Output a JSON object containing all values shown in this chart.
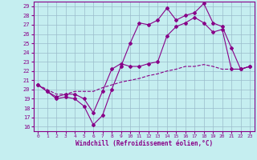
{
  "xlabel": "Windchill (Refroidissement éolien,°C)",
  "xlim": [
    -0.5,
    23.5
  ],
  "ylim": [
    15.5,
    29.5
  ],
  "xticks": [
    0,
    1,
    2,
    3,
    4,
    5,
    6,
    7,
    8,
    9,
    10,
    11,
    12,
    13,
    14,
    15,
    16,
    17,
    18,
    19,
    20,
    21,
    22,
    23
  ],
  "yticks": [
    16,
    17,
    18,
    19,
    20,
    21,
    22,
    23,
    24,
    25,
    26,
    27,
    28,
    29
  ],
  "bg_color": "#c5eef0",
  "grid_color": "#9bbccc",
  "line_color": "#880088",
  "line1_x": [
    0,
    1,
    2,
    3,
    4,
    5,
    6,
    7,
    8,
    9,
    10,
    11,
    12,
    13,
    14,
    15,
    16,
    17,
    18,
    19,
    20,
    21,
    22,
    23
  ],
  "line1_y": [
    20.5,
    19.8,
    19.0,
    19.2,
    19.0,
    18.2,
    16.2,
    17.2,
    20.0,
    22.5,
    25.0,
    27.2,
    27.0,
    27.5,
    28.8,
    27.5,
    28.0,
    28.3,
    29.3,
    27.2,
    26.8,
    24.5,
    22.2,
    22.5
  ],
  "line2_x": [
    0,
    1,
    2,
    3,
    4,
    5,
    6,
    7,
    8,
    9,
    10,
    11,
    12,
    13,
    14,
    15,
    16,
    17,
    18,
    19,
    20,
    21,
    22,
    23
  ],
  "line2_y": [
    20.5,
    19.8,
    19.2,
    19.5,
    19.5,
    19.0,
    17.5,
    19.8,
    22.2,
    22.8,
    22.5,
    22.5,
    22.8,
    23.0,
    25.8,
    26.8,
    27.2,
    27.8,
    27.2,
    26.2,
    26.5,
    22.2,
    22.2,
    22.5
  ],
  "line3_x": [
    0,
    1,
    2,
    3,
    4,
    5,
    6,
    7,
    8,
    9,
    10,
    11,
    12,
    13,
    14,
    15,
    16,
    17,
    18,
    19,
    20,
    21,
    22,
    23
  ],
  "line3_y": [
    20.5,
    20.0,
    19.5,
    19.5,
    19.8,
    19.8,
    19.8,
    20.2,
    20.5,
    20.8,
    21.0,
    21.2,
    21.5,
    21.7,
    22.0,
    22.2,
    22.5,
    22.5,
    22.7,
    22.5,
    22.2,
    22.2,
    22.2,
    22.5
  ]
}
